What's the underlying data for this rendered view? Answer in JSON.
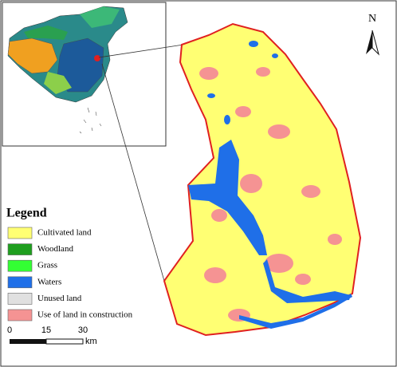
{
  "north_arrow": {
    "label": "N"
  },
  "legend": {
    "title": "Legend",
    "items": [
      {
        "label": "Cultivated land",
        "color": "#ffff73"
      },
      {
        "label": "Woodland",
        "color": "#1e9e1e"
      },
      {
        "label": "Grass",
        "color": "#33ff33"
      },
      {
        "label": "Waters",
        "color": "#1f6fe8"
      },
      {
        "label": "Unused land",
        "color": "#e0e0e0"
      },
      {
        "label": "Use of land in construction",
        "color": "#f59393"
      }
    ]
  },
  "scale_bar": {
    "ticks": [
      "0",
      "15",
      "30"
    ],
    "unit": "km"
  }
}
